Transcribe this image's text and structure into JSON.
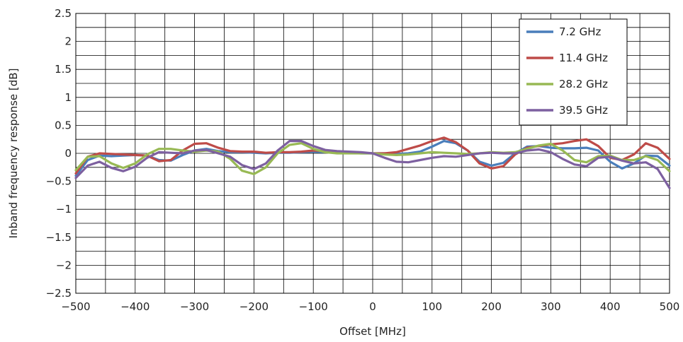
{
  "chart_data": {
    "type": "line",
    "title": "",
    "xlabel": "Offset [MHz]",
    "ylabel": "Inband frequency response [dB]",
    "xlim": [
      -500,
      500
    ],
    "ylim": [
      -2.5,
      2.5
    ],
    "xticks": [
      -500,
      -400,
      -300,
      -200,
      -100,
      0,
      100,
      200,
      300,
      400,
      500
    ],
    "xtick_labels": [
      "−500",
      "−400",
      "−300",
      "−200",
      "−100",
      "0",
      "100",
      "200",
      "300",
      "400",
      "500"
    ],
    "yticks": [
      2.5,
      2,
      1.5,
      1,
      0.5,
      0,
      -0.5,
      -1,
      -1.5,
      -2,
      -2.5
    ],
    "ytick_labels": [
      "2.5",
      "2",
      "1.5",
      "1",
      "0.5",
      "0",
      "−0.5",
      "−1",
      "−1.5",
      "−2",
      "−2.5"
    ],
    "grid": true,
    "legend_position": "top-right",
    "x": [
      -500,
      -480,
      -460,
      -440,
      -420,
      -400,
      -380,
      -360,
      -340,
      -320,
      -300,
      -280,
      -260,
      -240,
      -220,
      -200,
      -180,
      -160,
      -140,
      -120,
      -100,
      -80,
      -60,
      -40,
      -20,
      0,
      20,
      40,
      60,
      80,
      100,
      120,
      140,
      160,
      180,
      200,
      220,
      240,
      260,
      280,
      300,
      320,
      340,
      360,
      380,
      400,
      420,
      440,
      460,
      480,
      500
    ],
    "series": [
      {
        "name": "7.2 GHz",
        "color": "#4a7ebb",
        "values": [
          -0.4,
          -0.12,
          -0.04,
          -0.05,
          -0.04,
          -0.03,
          -0.04,
          -0.12,
          -0.13,
          -0.03,
          0.05,
          0.08,
          0.04,
          0.02,
          0.02,
          0.01,
          0.0,
          0.01,
          0.01,
          0.02,
          0.03,
          0.02,
          0.02,
          0.01,
          0.0,
          0.0,
          0.0,
          -0.01,
          0.0,
          0.03,
          0.12,
          0.22,
          0.18,
          0.05,
          -0.15,
          -0.22,
          -0.17,
          0.0,
          0.12,
          0.13,
          0.1,
          0.09,
          0.09,
          0.1,
          0.05,
          -0.15,
          -0.27,
          -0.18,
          -0.04,
          -0.05,
          -0.22
        ]
      },
      {
        "name": "11.4 GHz",
        "color": "#be4b48",
        "values": [
          -0.36,
          -0.06,
          0.0,
          -0.01,
          -0.02,
          -0.03,
          -0.04,
          -0.14,
          -0.12,
          0.05,
          0.17,
          0.18,
          0.1,
          0.04,
          0.03,
          0.03,
          0.01,
          0.02,
          0.02,
          0.03,
          0.05,
          0.04,
          0.03,
          0.02,
          0.01,
          0.0,
          0.0,
          0.02,
          0.08,
          0.14,
          0.22,
          0.28,
          0.2,
          0.05,
          -0.18,
          -0.27,
          -0.23,
          -0.02,
          0.1,
          0.13,
          0.16,
          0.18,
          0.22,
          0.25,
          0.13,
          -0.08,
          -0.12,
          -0.02,
          0.18,
          0.1,
          -0.1
        ]
      },
      {
        "name": "28.2 GHz",
        "color": "#98b954",
        "values": [
          -0.3,
          -0.06,
          -0.05,
          -0.18,
          -0.26,
          -0.18,
          -0.02,
          0.08,
          0.08,
          0.05,
          0.03,
          0.05,
          0.03,
          -0.1,
          -0.31,
          -0.37,
          -0.25,
          0.0,
          0.15,
          0.18,
          0.08,
          0.02,
          0.0,
          0.0,
          0.0,
          0.0,
          -0.02,
          -0.03,
          -0.02,
          0.0,
          0.02,
          0.01,
          0.0,
          -0.01,
          0.0,
          0.02,
          0.01,
          0.02,
          0.08,
          0.14,
          0.17,
          0.05,
          -0.12,
          -0.16,
          -0.05,
          -0.04,
          -0.12,
          -0.12,
          -0.05,
          -0.12,
          -0.32
        ]
      },
      {
        "name": "39.5 GHz",
        "color": "#7d60a0",
        "values": [
          -0.44,
          -0.22,
          -0.15,
          -0.26,
          -0.32,
          -0.24,
          -0.08,
          0.02,
          0.01,
          0.0,
          0.05,
          0.06,
          0.0,
          -0.06,
          -0.21,
          -0.28,
          -0.18,
          0.05,
          0.22,
          0.22,
          0.13,
          0.06,
          0.04,
          0.03,
          0.02,
          0.0,
          -0.08,
          -0.15,
          -0.16,
          -0.12,
          -0.08,
          -0.05,
          -0.06,
          -0.03,
          0.0,
          0.01,
          0.0,
          0.0,
          0.05,
          0.07,
          0.02,
          -0.1,
          -0.2,
          -0.23,
          -0.08,
          -0.06,
          -0.13,
          -0.18,
          -0.16,
          -0.28,
          -0.62
        ]
      }
    ]
  }
}
